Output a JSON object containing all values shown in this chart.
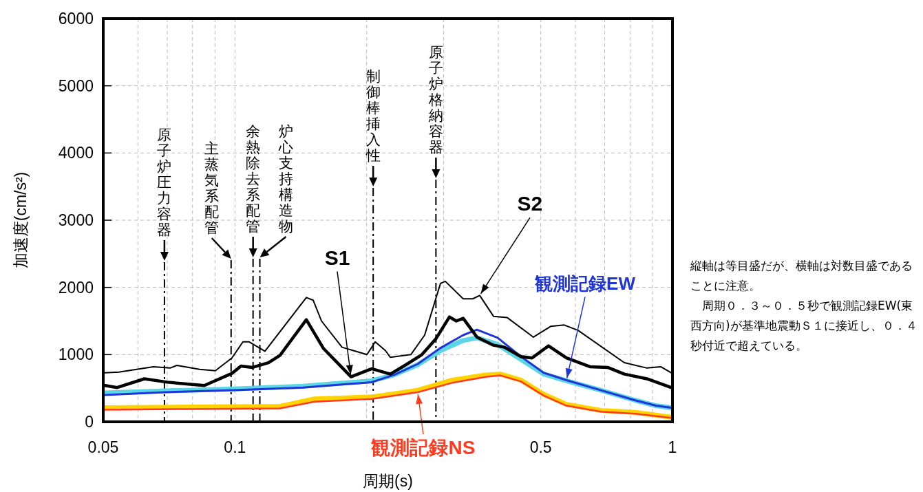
{
  "chart_data": {
    "type": "line",
    "xlabel": "周期(s)",
    "ylabel": "加速度(cm/s²)",
    "log": "x",
    "grid": true,
    "xlim": [
      0.05,
      1
    ],
    "ylim": [
      0,
      6000
    ],
    "xticks": [
      0.05,
      {
        "value": 0.06,
        "label": null
      },
      {
        "value": 0.07,
        "label": null
      },
      {
        "value": 0.08,
        "label": null
      },
      {
        "value": 0.09,
        "label": null
      },
      0.1,
      {
        "value": 0.2,
        "label": null
      },
      {
        "value": 0.3,
        "label": null
      },
      {
        "value": 0.4,
        "label": null
      },
      0.5,
      {
        "value": 0.6,
        "label": null
      },
      {
        "value": 0.7,
        "label": null
      },
      {
        "value": 0.8,
        "label": null
      },
      {
        "value": 0.9,
        "label": null
      },
      1
    ],
    "yticks": [
      0,
      1000,
      2000,
      3000,
      4000,
      5000,
      6000
    ],
    "series": [
      {
        "color": "#ffd200",
        "x": [
          0.0505,
          0.0781,
          0.1268,
          0.152,
          0.2054,
          0.2617,
          0.3137,
          0.376,
          0.4043,
          0.4506,
          0.5078,
          0.5725,
          0.686,
          0.822,
          0.993
        ],
        "values": [
          210,
          220,
          230,
          340,
          370,
          470,
          620,
          700,
          710,
          620,
          410,
          260,
          170,
          140,
          70
        ]
      },
      {
        "name": "観測記録NS",
        "color": "#ff3b1f",
        "x": [
          0.0505,
          0.0781,
          0.1268,
          0.152,
          0.2054,
          0.2617,
          0.3137,
          0.376,
          0.4043,
          0.4506,
          0.5078,
          0.5725,
          0.686,
          0.822,
          0.993
        ],
        "values": [
          180,
          190,
          200,
          300,
          340,
          440,
          580,
          670,
          690,
          600,
          390,
          240,
          150,
          120,
          60
        ]
      },
      {
        "color": "#5ad6e6",
        "x": [
          0.0505,
          0.0692,
          0.0995,
          0.143,
          0.2054,
          0.2314,
          0.2617,
          0.295,
          0.3324,
          0.3574,
          0.3985,
          0.4506,
          0.5078,
          0.5725,
          0.686,
          0.822,
          0.917,
          0.993
        ],
        "values": [
          430,
          460,
          490,
          530,
          610,
          700,
          850,
          1060,
          1210,
          1250,
          1150,
          930,
          710,
          610,
          470,
          320,
          240,
          210
        ]
      },
      {
        "name": "観測記録EW",
        "color": "#2035d8",
        "x": [
          0.0505,
          0.0692,
          0.0995,
          0.143,
          0.2054,
          0.2314,
          0.2617,
          0.295,
          0.3324,
          0.3574,
          0.3985,
          0.4506,
          0.5078,
          0.5725,
          0.686,
          0.822,
          0.917,
          0.993
        ],
        "values": [
          400,
          440,
          470,
          510,
          590,
          700,
          860,
          1100,
          1290,
          1370,
          1250,
          970,
          730,
          620,
          470,
          320,
          240,
          210
        ]
      },
      {
        "name": "S2",
        "color": "#000000",
        "x": [
          0.0505,
          0.0543,
          0.0651,
          0.0711,
          0.0737,
          0.083,
          0.0902,
          0.0984,
          0.1043,
          0.1078,
          0.1171,
          0.1456,
          0.1509,
          0.1577,
          0.1757,
          0.2003,
          0.2092,
          0.2208,
          0.2265,
          0.2524,
          0.2714,
          0.295,
          0.3026,
          0.3324,
          0.3497,
          0.3626,
          0.3899,
          0.4192,
          0.481,
          0.5266,
          0.566,
          0.6086,
          0.776,
          0.874,
          0.94,
          0.993
        ],
        "values": [
          730,
          740,
          820,
          800,
          840,
          780,
          760,
          950,
          1190,
          1190,
          1050,
          1850,
          1810,
          1500,
          1110,
          1000,
          1190,
          1060,
          960,
          1000,
          1290,
          2060,
          2090,
          1830,
          1830,
          1880,
          1570,
          1550,
          1260,
          1420,
          1440,
          1360,
          880,
          800,
          820,
          730
        ]
      },
      {
        "name": "S1",
        "color": "#000000",
        "x": [
          0.0505,
          0.0538,
          0.0621,
          0.07,
          0.0851,
          0.0984,
          0.1032,
          0.1097,
          0.1193,
          0.1268,
          0.1456,
          0.1594,
          0.1842,
          0.2054,
          0.2265,
          0.2461,
          0.2675,
          0.2876,
          0.3092,
          0.3206,
          0.3324,
          0.3574,
          0.3899,
          0.4131,
          0.4506,
          0.4775,
          0.5209,
          0.5725,
          0.6474,
          0.711,
          0.776,
          0.874,
          0.993
        ],
        "values": [
          540,
          510,
          640,
          590,
          540,
          720,
          830,
          810,
          880,
          990,
          1520,
          1090,
          670,
          790,
          710,
          850,
          1000,
          1230,
          1560,
          1500,
          1540,
          1260,
          1140,
          1110,
          970,
          950,
          1130,
          950,
          820,
          810,
          710,
          640,
          510
        ]
      }
    ],
    "ref_lines": [
      {
        "axis": "x",
        "value": 0.069,
        "label": "原子炉圧力容器"
      },
      {
        "axis": "x",
        "value": 0.098,
        "label": "主蒸気系配管"
      },
      {
        "axis": "x",
        "value": 0.11,
        "label": "余熱除去系配管"
      },
      {
        "axis": "x",
        "value": 0.114,
        "label": "炉心支持構造物"
      },
      {
        "axis": "x",
        "value": 0.207,
        "label": "制御棒挿入性"
      },
      {
        "axis": "x",
        "value": 0.288,
        "label": "原子炉格納容器"
      }
    ],
    "annotations": [
      "縦軸は等目盛だが、横軸は対数目盛であることに注意。",
      "　周期０．３～０．５秒で観測記録EW(東西方向)が基準地震動Ｓ１に接近し、０．４秒付近で超えている。"
    ]
  }
}
